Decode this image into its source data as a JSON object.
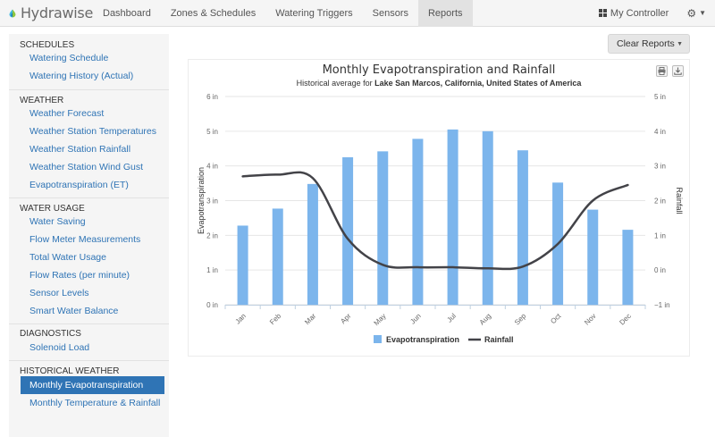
{
  "app": {
    "brand": "Hydrawise"
  },
  "nav": {
    "items": [
      "Dashboard",
      "Zones & Schedules",
      "Watering Triggers",
      "Sensors",
      "Reports"
    ],
    "active_index": 4,
    "controller": "My Controller"
  },
  "sidebar": {
    "sections": [
      {
        "title": "SCHEDULES",
        "items": [
          "Watering Schedule",
          "Watering History (Actual)"
        ]
      },
      {
        "title": "WEATHER",
        "items": [
          "Weather Forecast",
          "Weather Station Temperatures",
          "Weather Station Rainfall",
          "Weather Station Wind Gust",
          "Evapotranspiration (ET)"
        ]
      },
      {
        "title": "WATER USAGE",
        "items": [
          "Water Saving",
          "Flow Meter Measurements",
          "Total Water Usage",
          "Flow Rates (per minute)",
          "Sensor Levels",
          "Smart Water Balance"
        ]
      },
      {
        "title": "DIAGNOSTICS",
        "items": [
          "Solenoid Load"
        ]
      },
      {
        "title": "HISTORICAL WEATHER",
        "items": [
          "Monthly Evapotranspiration",
          "Monthly Temperature & Rainfall"
        ]
      }
    ],
    "active_item": "Monthly Evapotranspiration"
  },
  "toolbar": {
    "clear_reports": "Clear Reports"
  },
  "chart_data": {
    "type": "bar",
    "title": "Monthly Evapotranspiration and Rainfall",
    "subtitle_prefix": "Historical average for ",
    "subtitle_location": "Lake San Marcos, California, United States of America",
    "categories": [
      "Jan",
      "Feb",
      "Mar",
      "Apr",
      "May",
      "Jun",
      "Jul",
      "Aug",
      "Sep",
      "Oct",
      "Nov",
      "Dec"
    ],
    "series": [
      {
        "name": "Evapotranspiration",
        "type": "bar",
        "axis": "left",
        "color": "#7cb5ec",
        "values": [
          2.28,
          2.77,
          3.48,
          4.25,
          4.42,
          4.78,
          5.05,
          5.0,
          4.45,
          3.52,
          2.74,
          2.16
        ]
      },
      {
        "name": "Rainfall",
        "type": "line",
        "axis": "right",
        "color": "#434348",
        "values": [
          2.7,
          2.75,
          2.65,
          0.9,
          0.15,
          0.08,
          0.08,
          0.05,
          0.1,
          0.75,
          2.0,
          2.45
        ]
      }
    ],
    "ylabel": "Evapotranspiration",
    "y2label": "Rainfall",
    "ylim": [
      0,
      6
    ],
    "y2lim": [
      -1,
      5
    ],
    "yticks": [
      "0 in",
      "1 in",
      "2 in",
      "3 in",
      "4 in",
      "5 in",
      "6 in"
    ],
    "y2ticks": [
      "−1 in",
      "0 in",
      "1 in",
      "2 in",
      "3 in",
      "4 in",
      "5 in"
    ],
    "grid": true,
    "legend": "bottom-center"
  }
}
